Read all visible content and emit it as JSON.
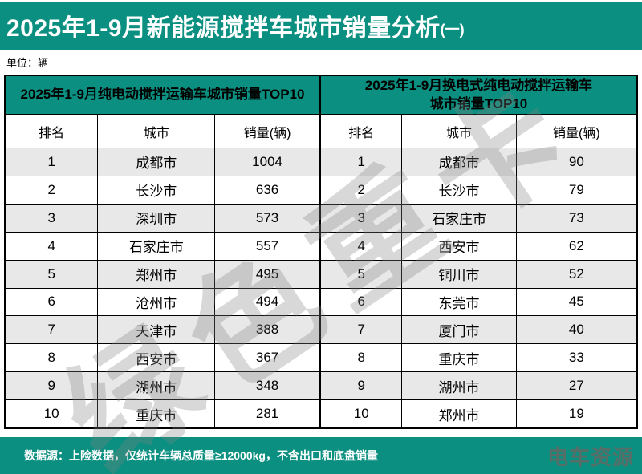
{
  "title": {
    "main": "2025年1-9月新能源搅拌车城市销量分析",
    "suffix": "(一)"
  },
  "unit_label": "单位：辆",
  "colors": {
    "teal": "#0A8F80",
    "row_alt": "#E8E8E8",
    "watermark_gray": "#828282"
  },
  "watermark_text": "绿色重卡",
  "chart_data": [
    {
      "type": "table",
      "title": "2025年1-9月纯电动搅拌运输车城市销量TOP10",
      "columns": [
        "排名",
        "城市",
        "销量(辆)"
      ],
      "rows": [
        [
          1,
          "成都市",
          1004
        ],
        [
          2,
          "长沙市",
          636
        ],
        [
          3,
          "深圳市",
          573
        ],
        [
          4,
          "石家庄市",
          557
        ],
        [
          5,
          "郑州市",
          495
        ],
        [
          6,
          "沧州市",
          494
        ],
        [
          7,
          "天津市",
          388
        ],
        [
          8,
          "西安市",
          367
        ],
        [
          9,
          "湖州市",
          348
        ],
        [
          10,
          "重庆市",
          281
        ]
      ]
    },
    {
      "type": "table",
      "title": "2025年1-9月换电式纯电动搅拌运输车\n城市销量TOP10",
      "columns": [
        "排名",
        "城市",
        "销量(辆)"
      ],
      "rows": [
        [
          1,
          "成都市",
          90
        ],
        [
          2,
          "长沙市",
          79
        ],
        [
          3,
          "石家庄市",
          73
        ],
        [
          4,
          "西安市",
          62
        ],
        [
          5,
          "铜川市",
          52
        ],
        [
          6,
          "东莞市",
          45
        ],
        [
          7,
          "厦门市",
          40
        ],
        [
          8,
          "重庆市",
          33
        ],
        [
          9,
          "湖州市",
          27
        ],
        [
          10,
          "郑州市",
          19
        ]
      ]
    }
  ],
  "footer": {
    "note": "数据源：上险数据，仅统计车辆总质量≥12000kg，不含出口和底盘销量",
    "logo": "电车资源"
  }
}
